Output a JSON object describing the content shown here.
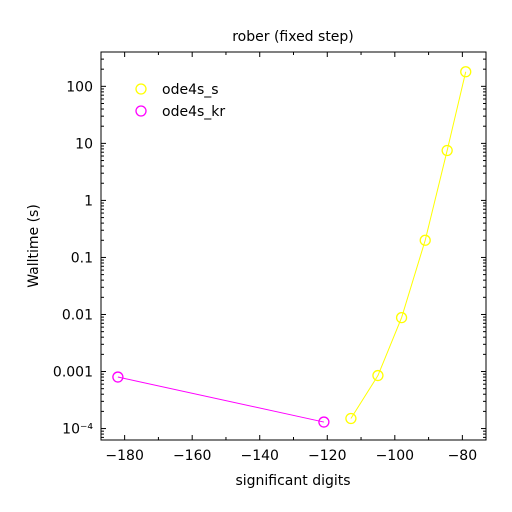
{
  "chart_data": {
    "type": "line",
    "title": "rober (fixed step)",
    "xlabel": "significant digits",
    "ylabel": "Walltime (s)",
    "xscale": "linear",
    "yscale": "log",
    "xlim": [
      -187,
      -73
    ],
    "ylim": [
      6.3e-05,
      400
    ],
    "xticks": [
      -180,
      -160,
      -140,
      -120,
      -100,
      -80
    ],
    "xtick_labels": [
      "−180",
      "−160",
      "−140",
      "−120",
      "−100",
      "−80"
    ],
    "yticks": [
      0.0001,
      0.001,
      0.01,
      0.1,
      1,
      10,
      100
    ],
    "ytick_labels": [
      "10⁻⁴",
      "0.001",
      "0.01",
      "0.1",
      "1",
      "10",
      "100"
    ],
    "grid": false,
    "legend_position": "top-left",
    "series": [
      {
        "name": "ode4s_s",
        "color": "#ffff00",
        "marker": "circle",
        "x": [
          -113,
          -105,
          -98,
          -91,
          -84.5,
          -79
        ],
        "y": [
          0.00015,
          0.00085,
          0.0088,
          0.2,
          7.5,
          180
        ]
      },
      {
        "name": "ode4s_kr",
        "color": "#ff00ff",
        "marker": "circle",
        "x": [
          -182,
          -121
        ],
        "y": [
          0.0008,
          0.00013
        ]
      }
    ]
  }
}
